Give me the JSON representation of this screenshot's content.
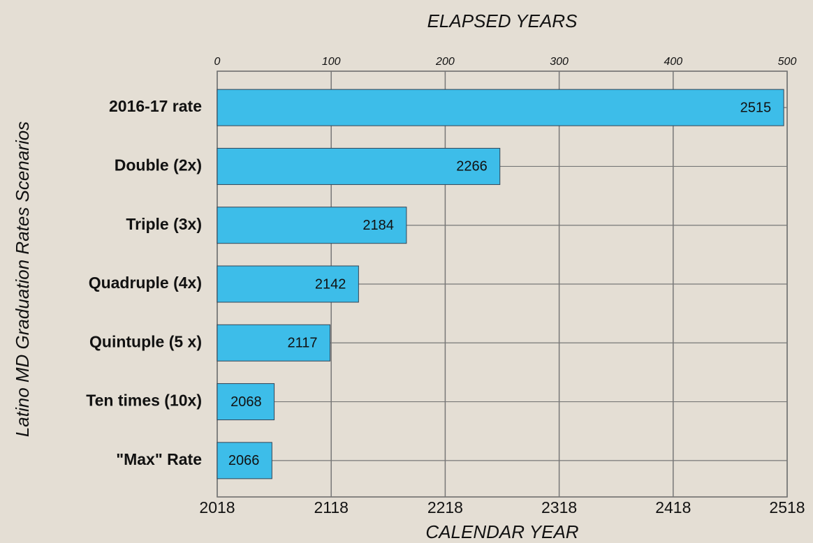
{
  "chart_data": {
    "type": "bar",
    "orientation": "horizontal",
    "title": "ELAPSED YEARS",
    "x_label": "CALENDAR YEAR",
    "y_label": "Latino MD Graduation Rates Scenarios",
    "categories": [
      "2016-17 rate",
      "Double (2x)",
      "Triple (3x)",
      "Quadruple (4x)",
      "Quintuple (5 x)",
      "Ten times (10x)",
      "\"Max\" Rate"
    ],
    "values": [
      2515,
      2266,
      2184,
      2142,
      2117,
      2068,
      2066
    ],
    "color": "#3dbde9",
    "xlim": [
      2018,
      2518
    ],
    "xticks": [
      2018,
      2118,
      2218,
      2318,
      2418,
      2518
    ],
    "x2lim": [
      0,
      500
    ],
    "x2ticks": [
      0,
      100,
      200,
      300,
      400,
      500
    ],
    "grid": true
  }
}
